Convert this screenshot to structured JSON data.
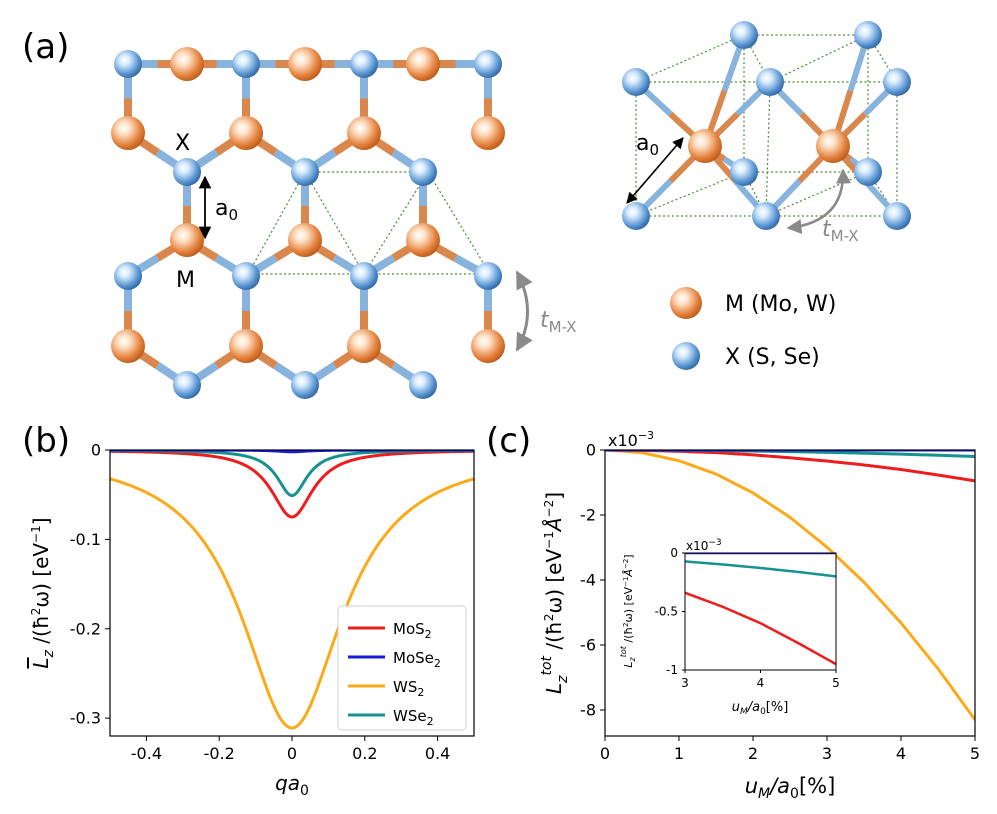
{
  "panels": {
    "a": {
      "label": "(a)",
      "atom_labels": {
        "x": "X",
        "m": "M",
        "a0": "a",
        "a0_sub": "0"
      },
      "hop_label": {
        "main": "t",
        "sub": "M-X"
      },
      "legend": [
        {
          "text": "M (Mo, W)",
          "color": "#e07b3a"
        },
        {
          "text": "X (S, Se)",
          "color": "#4a86c5"
        }
      ]
    },
    "b": {
      "label": "(b)"
    },
    "c": {
      "label": "(c)"
    }
  },
  "chart_data": [
    {
      "id": "b",
      "type": "line",
      "title": "",
      "xlabel": "qa0",
      "ylabel": "L_z /(ħ²ω) [eV⁻¹]",
      "xlim": [
        -0.5,
        0.5
      ],
      "ylim": [
        -0.32,
        0.0
      ],
      "xticks": [
        -0.4,
        -0.2,
        0,
        0.2,
        0.4
      ],
      "xtick_labels": [
        "-0.4",
        "-0.2",
        "0",
        "0.2",
        "0.4"
      ],
      "yticks": [
        0,
        -0.1,
        -0.2,
        -0.3
      ],
      "ytick_labels": [
        "0",
        "-0.1",
        "-0.2",
        "-0.3"
      ],
      "legend_position": "lower-right",
      "series": [
        {
          "name": "MoS",
          "sub": "2",
          "color": "#ee1c1c",
          "peak": -0.075,
          "width": 0.07
        },
        {
          "name": "MoSe",
          "sub": "2",
          "color": "#1a1add",
          "peak": -0.002,
          "width": 0.05
        },
        {
          "name": "WS",
          "sub": "2",
          "color": "#fbaa1a",
          "peak": -0.311,
          "width": 0.17
        },
        {
          "name": "WSe",
          "sub": "2",
          "color": "#16938e",
          "peak": -0.051,
          "width": 0.05
        }
      ]
    },
    {
      "id": "c",
      "type": "line",
      "xlabel": "uM/a0[%]",
      "ylabel": "L_z^tot /(ħ²ω) [eV⁻¹Å⁻²]",
      "multiplier": "x10",
      "multiplier_exp": "−3",
      "xlim": [
        0,
        5
      ],
      "ylim": [
        -8.8,
        0
      ],
      "xticks": [
        0,
        1,
        2,
        3,
        4,
        5
      ],
      "xtick_labels": [
        "0",
        "1",
        "2",
        "3",
        "4",
        "5"
      ],
      "yticks": [
        0,
        -2,
        -4,
        -6,
        -8
      ],
      "ytick_labels": [
        "0",
        "-2",
        "-4",
        "-6",
        "-8"
      ],
      "series": [
        {
          "name": "MoS2",
          "color": "#ee1c1c",
          "x": [
            0,
            0.5,
            1,
            1.5,
            2,
            2.5,
            3,
            3.5,
            4,
            4.5,
            5
          ],
          "values": [
            0,
            -0.01,
            -0.04,
            -0.08,
            -0.15,
            -0.24,
            -0.34,
            -0.46,
            -0.6,
            -0.77,
            -0.95
          ]
        },
        {
          "name": "MoSe2",
          "color": "#1a1add",
          "x": [
            0,
            5
          ],
          "values": [
            0,
            0
          ]
        },
        {
          "name": "WS2",
          "color": "#fbaa1a",
          "x": [
            0,
            0.5,
            1,
            1.5,
            2,
            2.5,
            3,
            3.5,
            4,
            4.5,
            5
          ],
          "values": [
            0,
            -0.08,
            -0.33,
            -0.74,
            -1.32,
            -2.07,
            -2.99,
            -4.07,
            -5.32,
            -6.73,
            -8.3
          ]
        },
        {
          "name": "WSe2",
          "color": "#16938e",
          "x": [
            0,
            0.5,
            1,
            1.5,
            2,
            2.5,
            3,
            3.5,
            4,
            4.5,
            5
          ],
          "values": [
            0,
            -0.002,
            -0.008,
            -0.018,
            -0.032,
            -0.05,
            -0.072,
            -0.098,
            -0.128,
            -0.162,
            -0.2
          ]
        }
      ],
      "inset": {
        "xlabel": "uM/a0[%]",
        "ylabel": "L_z^tot /(ħ²ω) [eV⁻¹Å⁻²]",
        "multiplier": "x10",
        "multiplier_exp": "−3",
        "xlim": [
          3,
          5
        ],
        "ylim": [
          -1,
          0
        ],
        "xticks": [
          3,
          4,
          5
        ],
        "xtick_labels": [
          "3",
          "4",
          "5"
        ],
        "yticks": [
          0,
          -0.5,
          -1
        ],
        "ytick_labels": [
          "0",
          "-0.5",
          "-1"
        ],
        "series": [
          {
            "name": "MoS2",
            "color": "#ee1c1c",
            "x": [
              3,
              3.5,
              4,
              4.5,
              5
            ],
            "values": [
              -0.34,
              -0.46,
              -0.6,
              -0.77,
              -0.95
            ]
          },
          {
            "name": "MoSe2",
            "color": "#1a1add",
            "x": [
              3,
              5
            ],
            "values": [
              0,
              0
            ]
          },
          {
            "name": "WSe2",
            "color": "#16938e",
            "x": [
              3,
              3.5,
              4,
              4.5,
              5
            ],
            "values": [
              -0.072,
              -0.098,
              -0.128,
              -0.162,
              -0.2
            ]
          }
        ]
      }
    }
  ]
}
